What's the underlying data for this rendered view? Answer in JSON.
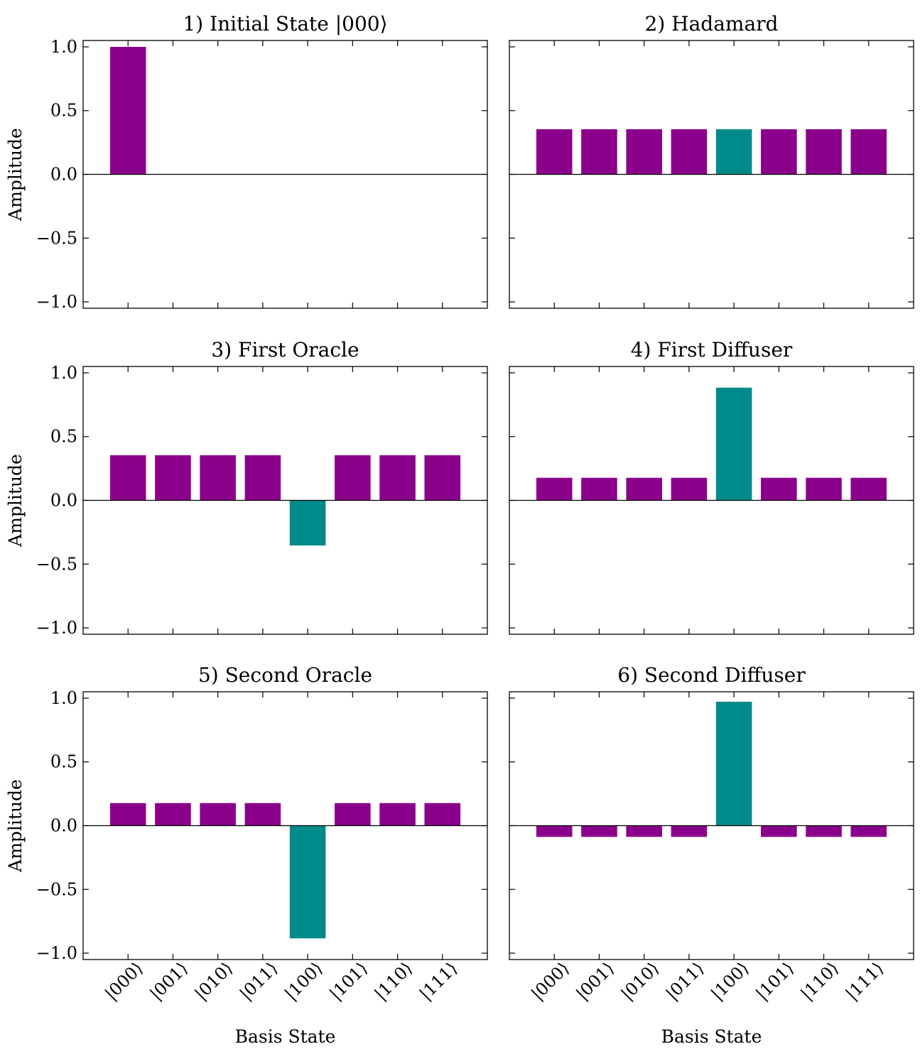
{
  "colors": {
    "normal": "#8b008b",
    "marked": "#008b8b",
    "axis": "#000000"
  },
  "chart_data": {
    "type": "bar",
    "categories": [
      "|000⟩",
      "|001⟩",
      "|010⟩",
      "|011⟩",
      "|100⟩",
      "|101⟩",
      "|110⟩",
      "|111⟩"
    ],
    "marked_index": 4,
    "ylim": [
      -1.05,
      1.05
    ],
    "yticks": [
      1.0,
      0.5,
      0.0,
      -0.5,
      -1.0
    ],
    "ytick_labels": [
      "1.0",
      "0.5",
      "0.0",
      "−0.5",
      "−1.0"
    ],
    "ylabel": "Amplitude",
    "xlabel": "Basis State",
    "panels": [
      {
        "title": "1) Initial State |000⟩",
        "values": [
          1.0,
          0,
          0,
          0,
          0,
          0,
          0,
          0
        ]
      },
      {
        "title": "2) Hadamard",
        "values": [
          0.354,
          0.354,
          0.354,
          0.354,
          0.354,
          0.354,
          0.354,
          0.354
        ]
      },
      {
        "title": "3) First Oracle",
        "values": [
          0.354,
          0.354,
          0.354,
          0.354,
          -0.354,
          0.354,
          0.354,
          0.354
        ]
      },
      {
        "title": "4) First Diffuser",
        "values": [
          0.177,
          0.177,
          0.177,
          0.177,
          0.884,
          0.177,
          0.177,
          0.177
        ]
      },
      {
        "title": "5) Second Oracle",
        "values": [
          0.177,
          0.177,
          0.177,
          0.177,
          -0.884,
          0.177,
          0.177,
          0.177
        ]
      },
      {
        "title": "6) Second Diffuser",
        "values": [
          -0.088,
          -0.088,
          -0.088,
          -0.088,
          0.972,
          -0.088,
          -0.088,
          -0.088
        ]
      }
    ]
  }
}
